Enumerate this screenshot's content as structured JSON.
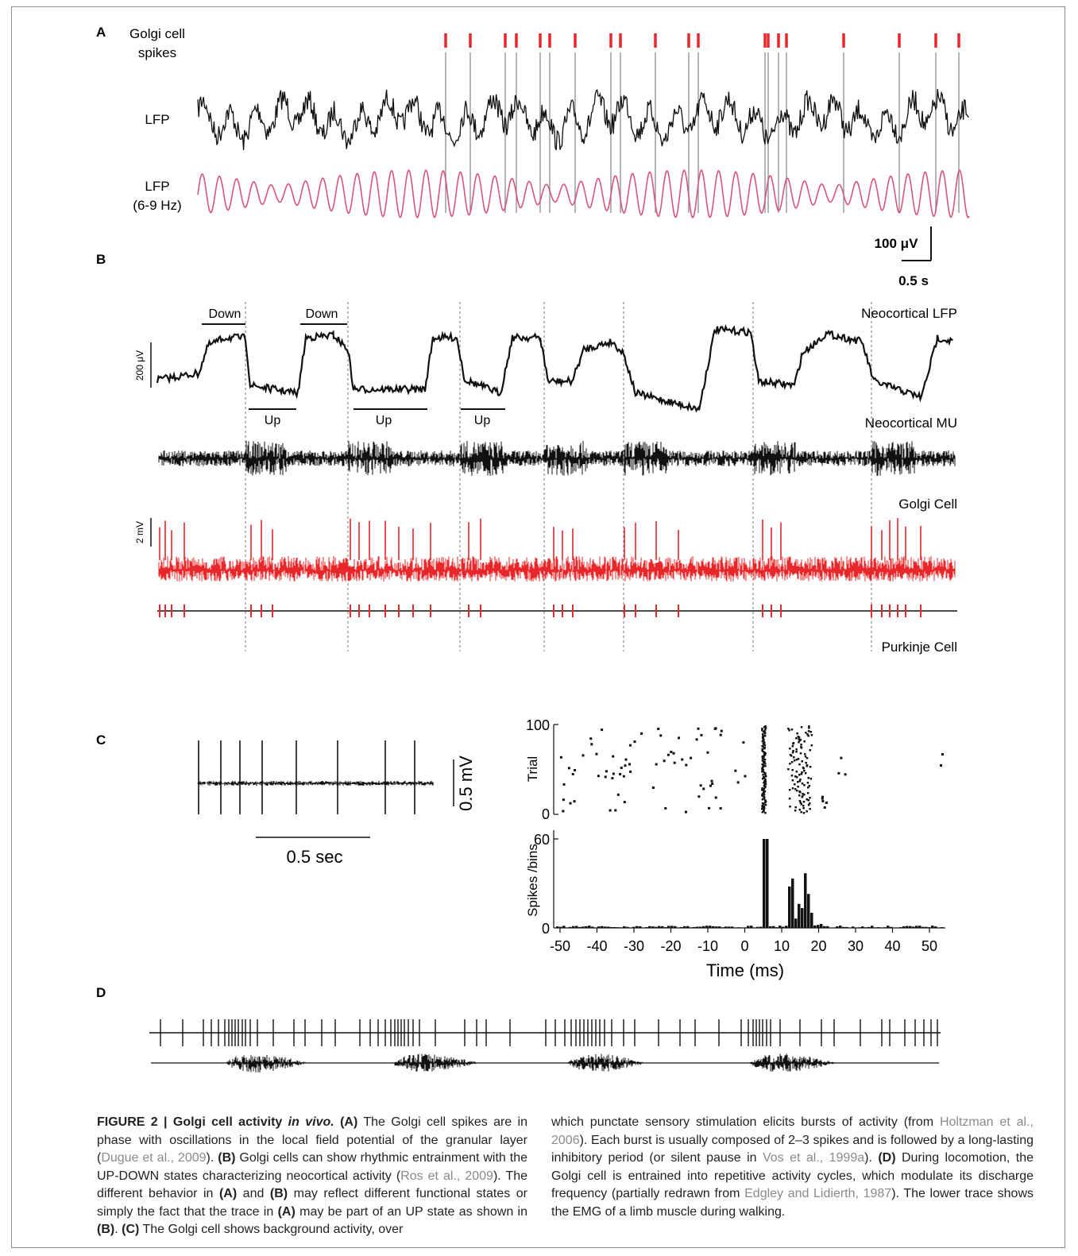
{
  "panel_a": {
    "letter": "A",
    "label_spikes_1": "Golgi cell",
    "label_spikes_2": "spikes",
    "label_lfp": "LFP",
    "label_filtered_1": "LFP",
    "label_filtered_2": "(6-9 Hz)",
    "scale_v": "100 μV",
    "scale_t": "0.5 s",
    "colors": {
      "spikes": "#e8272a",
      "lfp": "#111111",
      "filtered": "#d9547a",
      "lines": "#8c8c8c"
    }
  },
  "panel_b": {
    "letter": "B",
    "down_label": "Down",
    "up_label": "Up",
    "neo_lfp": "Neocortical LFP",
    "neo_mu": "Neocortical MU",
    "golgi": "Golgi Cell",
    "purkinje": "Purkinje Cell",
    "scale_lfp": "200 μV",
    "scale_golgi": "2 mV",
    "colors": {
      "golgi": "#e8272a"
    }
  },
  "panel_c": {
    "letter": "C",
    "scale_v": "0.5 mV",
    "scale_t": "0.5 sec",
    "raster_ylabel": "Trial",
    "hist_ylabel": "Spikes /bins",
    "xlabel": "Time (ms)",
    "raster_yticks": [
      "0",
      "100"
    ],
    "hist_yticks": [
      "0",
      "60"
    ],
    "xticks": [
      "-50",
      "-40",
      "-30",
      "-20",
      "-10",
      "0",
      "10",
      "20",
      "30",
      "40",
      "50"
    ]
  },
  "panel_d": {
    "letter": "D"
  },
  "caption": {
    "fig_label": "FIGURE 2 | Golgi cell activity ",
    "fig_italic": "in vivo.",
    "left_html": " <b>(A)</b> The Golgi cell spikes are in phase with oscillations in the local field potential of the granular layer (<span class=\"ref\">Dugue et al., 2009</span>). <b>(B)</b> Golgi cells can show rhythmic entrainment with the UP-DOWN states characterizing neocortical activity (<span class=\"ref\">Ros et al., 2009</span>). The different behavior in <b>(A)</b> and <b>(B)</b> may reflect different functional states or simply the fact that the trace in <b>(A)</b> may be part of an UP state as shown in <b>(B)</b>. <b>(C)</b> The Golgi cell shows background activity, over",
    "right_html": "which punctate sensory stimulation elicits bursts of activity (from <span class=\"ref\">Holtzman et al., 2006</span>). Each burst is usually composed of 2–3 spikes and is followed by a long-lasting inhibitory period (or silent pause in <span class=\"ref\">Vos et al., 1999a</span>). <b>(D)</b> During locomotion, the Golgi cell is entrained into repetitive activity cycles, which modulate its discharge frequency (partially redrawn from <span class=\"ref\">Edgley and Lidierth, 1987</span>). The lower trace shows the EMG of a limb muscle during walking."
  }
}
